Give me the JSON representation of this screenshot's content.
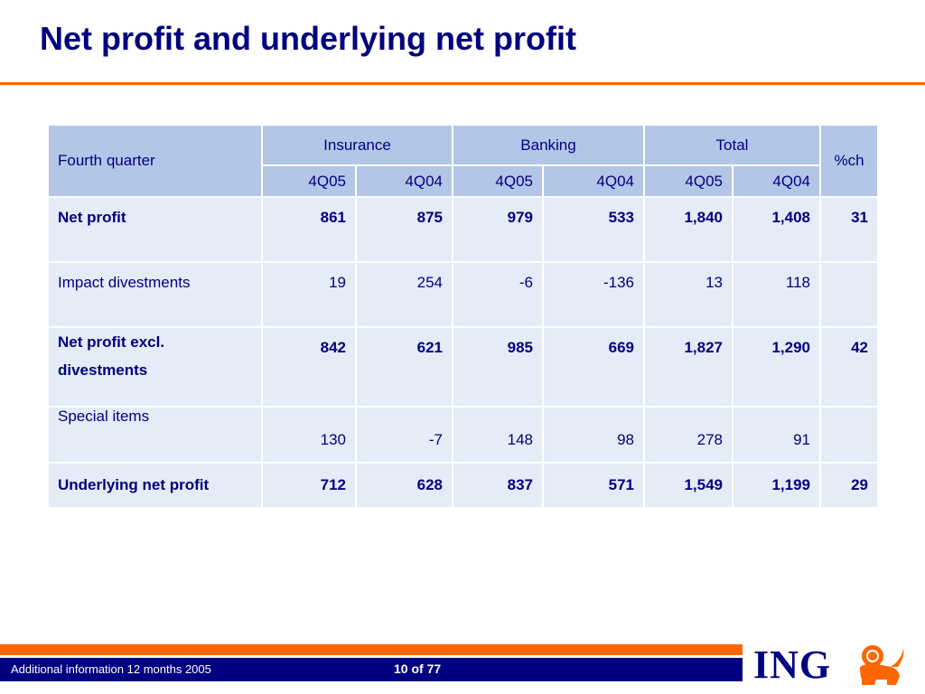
{
  "title": "Net profit and underlying net profit",
  "table": {
    "corner": "Fourth quarter",
    "groups": [
      "Insurance",
      "Banking",
      "Total"
    ],
    "pct_header": "%ch",
    "periods": [
      "4Q05",
      "4Q04",
      "4Q05",
      "4Q04",
      "4Q05",
      "4Q04"
    ],
    "rows": [
      {
        "label": "Net profit",
        "values": [
          "861",
          "875",
          "979",
          "533",
          "1,840",
          "1,408"
        ],
        "pct": "31"
      },
      {
        "label": "Impact divestments",
        "values": [
          "19",
          "254",
          "-6",
          "-136",
          "13",
          "118"
        ],
        "pct": ""
      },
      {
        "label_line1": "Net profit excl.",
        "label_line2": "divestments",
        "values": [
          "842",
          "621",
          "985",
          "669",
          "1,827",
          "1,290"
        ],
        "pct": "42"
      },
      {
        "label": "Special items",
        "values": [
          "130",
          "-7",
          "148",
          "98",
          "278",
          "91"
        ],
        "pct": ""
      },
      {
        "label": "Underlying net profit",
        "values": [
          "712",
          "628",
          "837",
          "571",
          "1,549",
          "1,199"
        ],
        "pct": "29"
      }
    ]
  },
  "footer": {
    "left_text": "Additional information 12 months 2005",
    "page": "10 of 77",
    "logo_text": "ING",
    "logo_icon": "lion-icon"
  },
  "colors": {
    "navy": "#000080",
    "orange": "#ff6600",
    "header_bg": "#b3c6e7",
    "body_bg": "#e3ecf7"
  }
}
